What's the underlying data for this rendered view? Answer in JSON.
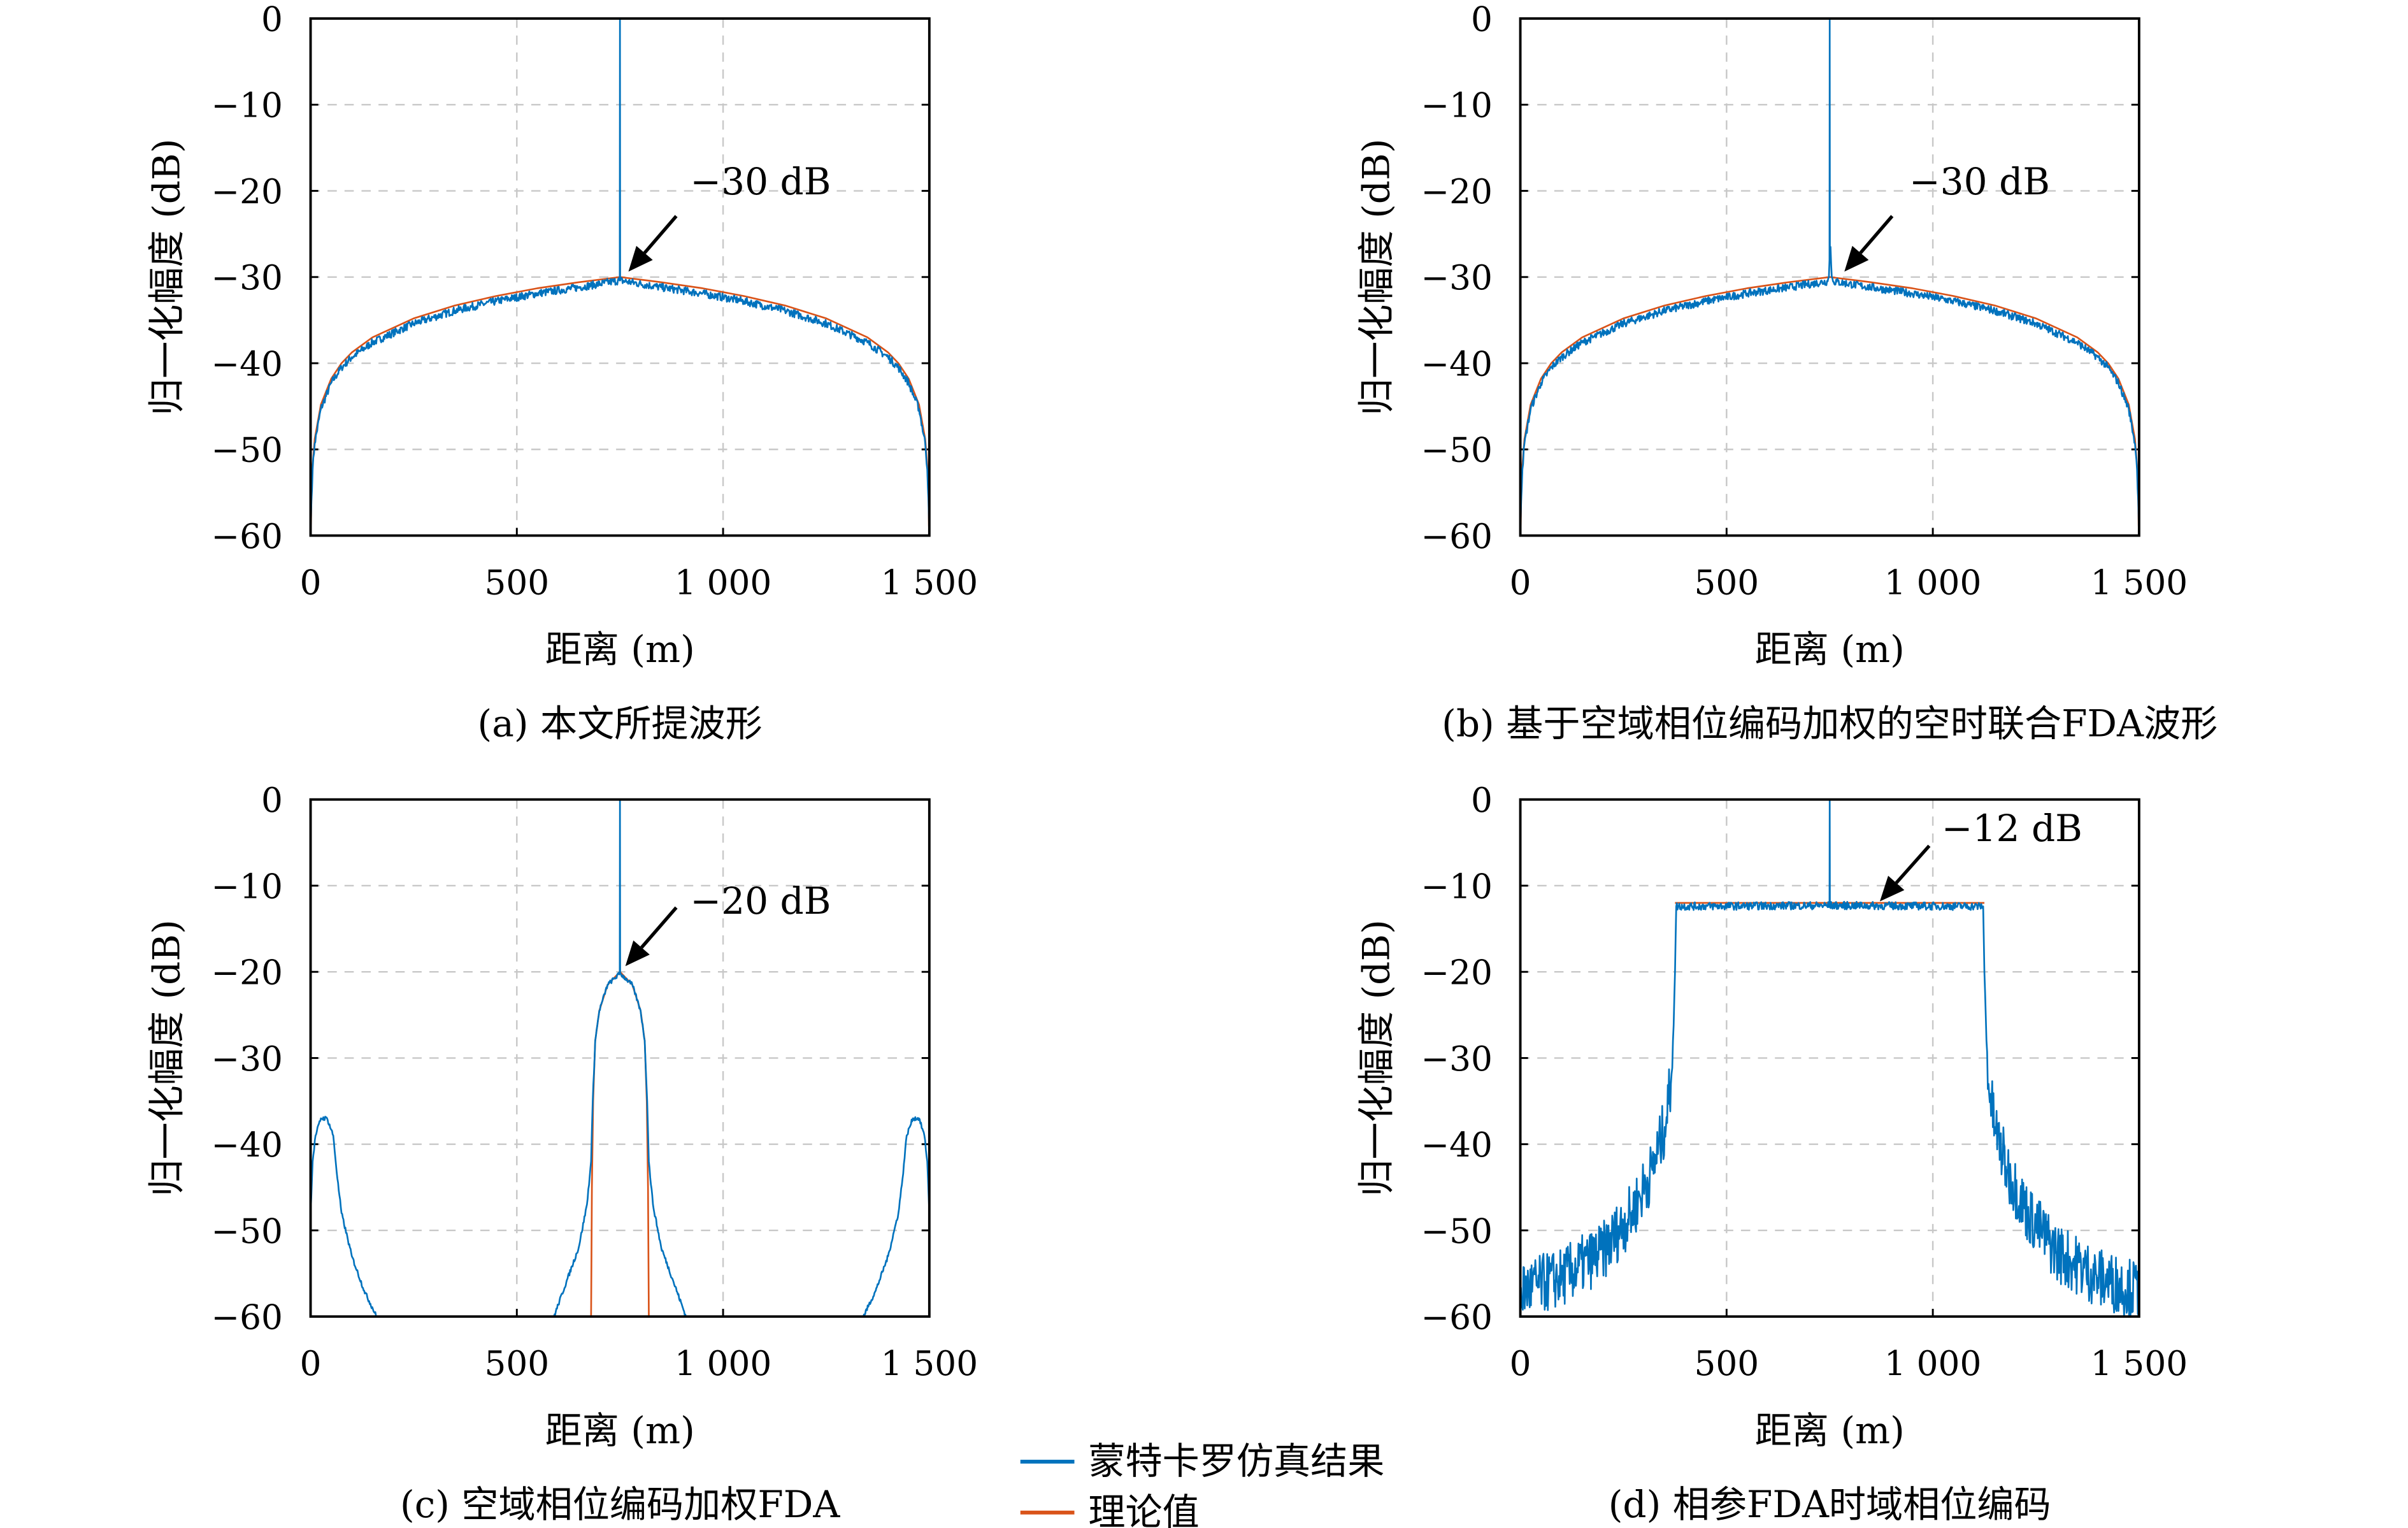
{
  "colors": {
    "simulation": "#0072BD",
    "theory": "#D95319",
    "grid": "#c8c8c8"
  },
  "legend": {
    "simulation": "蒙特卡罗仿真结果",
    "theory": "理论值",
    "placement": "bottom-center"
  },
  "chart_data": [
    {
      "type": "line",
      "caption": "(a) 本文所提波形",
      "xlabel": "距离 (m)",
      "ylabel": "归一化幅度 (dB)",
      "xlim": [
        0,
        1500
      ],
      "ylim": [
        -60,
        0
      ],
      "xticks": [
        0,
        500,
        1000,
        1500
      ],
      "xtick_labels": [
        "0",
        "500",
        "1 000",
        "1 500"
      ],
      "yticks": [
        0,
        -10,
        -20,
        -30,
        -40,
        -50,
        -60
      ],
      "ytick_labels": [
        "0",
        "−10",
        "−20",
        "−30",
        "−40",
        "−50",
        "−60"
      ],
      "grid": true,
      "annotation": {
        "text": "−30 dB",
        "x": 750,
        "y": -30
      },
      "series": [
        {
          "name": "蒙特卡罗仿真结果",
          "points": [
            [
              0,
              -60
            ],
            [
              2,
              -56
            ],
            [
              5,
              -52.3
            ],
            [
              10,
              -49.3
            ],
            [
              25,
              -45.3
            ],
            [
              50,
              -42.3
            ],
            [
              75,
              -40.5
            ],
            [
              100,
              -39.3
            ],
            [
              150,
              -37.6
            ],
            [
              250,
              -35.4
            ],
            [
              350,
              -33.9
            ],
            [
              450,
              -32.8
            ],
            [
              550,
              -31.9
            ],
            [
              650,
              -31.2
            ],
            [
              749.5,
              -30.4
            ],
            [
              750,
              0
            ],
            [
              750.5,
              -30.4
            ],
            [
              850,
              -31.2
            ],
            [
              950,
              -31.9
            ],
            [
              1050,
              -32.8
            ],
            [
              1150,
              -33.9
            ],
            [
              1250,
              -35.4
            ],
            [
              1350,
              -37.6
            ],
            [
              1400,
              -39.3
            ],
            [
              1425,
              -40.5
            ],
            [
              1450,
              -42.3
            ],
            [
              1475,
              -45.3
            ],
            [
              1490,
              -49.3
            ],
            [
              1495,
              -52.3
            ],
            [
              1498,
              -56
            ],
            [
              1500,
              -60
            ]
          ]
        },
        {
          "name": "理论值",
          "points": [
            [
              0,
              -60
            ],
            [
              1,
              -58.8
            ],
            [
              2,
              -55.7
            ],
            [
              5,
              -51.8
            ],
            [
              10,
              -48.8
            ],
            [
              25,
              -44.8
            ],
            [
              50,
              -41.8
            ],
            [
              75,
              -40
            ],
            [
              100,
              -38.75
            ],
            [
              150,
              -37
            ],
            [
              250,
              -34.8
            ],
            [
              350,
              -33.3
            ],
            [
              450,
              -32.2
            ],
            [
              550,
              -31.3
            ],
            [
              650,
              -30.6
            ],
            [
              750,
              -30
            ],
            [
              850,
              -30.6
            ],
            [
              950,
              -31.3
            ],
            [
              1050,
              -32.2
            ],
            [
              1150,
              -33.3
            ],
            [
              1250,
              -34.8
            ],
            [
              1350,
              -37
            ],
            [
              1400,
              -38.75
            ],
            [
              1425,
              -40
            ],
            [
              1450,
              -41.8
            ],
            [
              1475,
              -44.8
            ],
            [
              1490,
              -48.8
            ],
            [
              1495,
              -51.8
            ],
            [
              1498,
              -55.7
            ],
            [
              1499,
              -58.8
            ],
            [
              1500,
              -60
            ]
          ]
        }
      ]
    },
    {
      "type": "line",
      "caption": "(b) 基于空域相位编码加权的空时联合FDA波形",
      "xlabel": "距离 (m)",
      "ylabel": "归一化幅度 (dB)",
      "xlim": [
        0,
        1500
      ],
      "ylim": [
        -60,
        0
      ],
      "xticks": [
        0,
        500,
        1000,
        1500
      ],
      "xtick_labels": [
        "0",
        "500",
        "1 000",
        "1 500"
      ],
      "yticks": [
        0,
        -10,
        -20,
        -30,
        -40,
        -50,
        -60
      ],
      "ytick_labels": [
        "0",
        "−10",
        "−20",
        "−30",
        "−40",
        "−50",
        "−60"
      ],
      "grid": true,
      "annotation": {
        "text": "−30 dB",
        "x": 760,
        "y": -30
      },
      "series": [
        {
          "name": "蒙特卡罗仿真结果",
          "points": [
            [
              0,
              -60
            ],
            [
              2,
              -56
            ],
            [
              5,
              -52.3
            ],
            [
              10,
              -49.3
            ],
            [
              25,
              -45.3
            ],
            [
              50,
              -42.3
            ],
            [
              75,
              -40.5
            ],
            [
              100,
              -39.3
            ],
            [
              150,
              -37.6
            ],
            [
              250,
              -35.4
            ],
            [
              350,
              -33.9
            ],
            [
              450,
              -32.8
            ],
            [
              550,
              -31.9
            ],
            [
              650,
              -31.2
            ],
            [
              745,
              -30.5
            ],
            [
              748,
              -30
            ],
            [
              749.5,
              -28
            ],
            [
              750,
              0
            ],
            [
              750.5,
              -27
            ],
            [
              752,
              -26.5
            ],
            [
              755,
              -30
            ],
            [
              758,
              -30.5
            ],
            [
              850,
              -31.2
            ],
            [
              950,
              -31.9
            ],
            [
              1050,
              -32.8
            ],
            [
              1150,
              -33.9
            ],
            [
              1250,
              -35.4
            ],
            [
              1350,
              -37.6
            ],
            [
              1400,
              -39.3
            ],
            [
              1425,
              -40.5
            ],
            [
              1450,
              -42.3
            ],
            [
              1475,
              -45.3
            ],
            [
              1490,
              -49.3
            ],
            [
              1495,
              -52.3
            ],
            [
              1498,
              -56
            ],
            [
              1500,
              -60
            ]
          ]
        },
        {
          "name": "理论值",
          "points": [
            [
              0,
              -60
            ],
            [
              1,
              -58.8
            ],
            [
              2,
              -55.7
            ],
            [
              5,
              -51.8
            ],
            [
              10,
              -48.8
            ],
            [
              25,
              -44.8
            ],
            [
              50,
              -41.8
            ],
            [
              75,
              -40
            ],
            [
              100,
              -38.75
            ],
            [
              150,
              -37
            ],
            [
              250,
              -34.8
            ],
            [
              350,
              -33.3
            ],
            [
              450,
              -32.2
            ],
            [
              550,
              -31.3
            ],
            [
              650,
              -30.6
            ],
            [
              750,
              -30
            ],
            [
              850,
              -30.6
            ],
            [
              950,
              -31.3
            ],
            [
              1050,
              -32.2
            ],
            [
              1150,
              -33.3
            ],
            [
              1250,
              -34.8
            ],
            [
              1350,
              -37
            ],
            [
              1400,
              -38.75
            ],
            [
              1425,
              -40
            ],
            [
              1450,
              -41.8
            ],
            [
              1475,
              -44.8
            ],
            [
              1490,
              -48.8
            ],
            [
              1495,
              -51.8
            ],
            [
              1498,
              -55.7
            ],
            [
              1499,
              -58.8
            ],
            [
              1500,
              -60
            ]
          ]
        }
      ]
    },
    {
      "type": "line",
      "caption": "(c) 空域相位编码加权FDA",
      "xlabel": "距离 (m)",
      "ylabel": "归一化幅度 (dB)",
      "xlim": [
        0,
        1500
      ],
      "ylim": [
        -60,
        0
      ],
      "xticks": [
        0,
        500,
        1000,
        1500
      ],
      "xtick_labels": [
        "0",
        "500",
        "1 000",
        "1 500"
      ],
      "yticks": [
        0,
        -10,
        -20,
        -30,
        -40,
        -50,
        -60
      ],
      "ytick_labels": [
        "0",
        "−10",
        "−20",
        "−30",
        "−40",
        "−50",
        "−60"
      ],
      "grid": true,
      "annotation": {
        "text": "−20 dB",
        "x": 750,
        "y": -20
      },
      "series": [
        {
          "name": "蒙特卡罗仿真结果",
          "points": [
            [
              0,
              -48
            ],
            [
              5,
              -42
            ],
            [
              12,
              -39
            ],
            [
              25,
              -37
            ],
            [
              40,
              -37
            ],
            [
              55,
              -39
            ],
            [
              65,
              -44
            ],
            [
              75,
              -48
            ],
            [
              100,
              -53
            ],
            [
              130,
              -57
            ],
            [
              160,
              -60
            ]
          ],
          "segments": [
            [
              [
                590,
                -60
              ],
              [
                620,
                -56
              ],
              [
                650,
                -52
              ],
              [
                670,
                -47
              ],
              [
                680,
                -42
              ],
              [
                684,
                -35
              ],
              [
                690,
                -28
              ],
              [
                700,
                -24.5
              ],
              [
                720,
                -21.5
              ],
              [
                749.5,
                -20.2
              ],
              [
                750,
                0
              ],
              [
                750.5,
                -20.2
              ],
              [
                780,
                -21.5
              ],
              [
                800,
                -24.5
              ],
              [
                810,
                -28
              ],
              [
                816,
                -35
              ],
              [
                820,
                -42
              ],
              [
                830,
                -47
              ],
              [
                850,
                -52
              ],
              [
                880,
                -56
              ],
              [
                910,
                -60
              ]
            ],
            [
              [
                1340,
                -60
              ],
              [
                1370,
                -57
              ],
              [
                1400,
                -53
              ],
              [
                1425,
                -48
              ],
              [
                1435,
                -44
              ],
              [
                1445,
                -39
              ],
              [
                1460,
                -37
              ],
              [
                1475,
                -37
              ],
              [
                1488,
                -39
              ],
              [
                1495,
                -42
              ],
              [
                1500,
                -48
              ]
            ]
          ]
        },
        {
          "name": "理论值",
          "points": [
            [
              680,
              -60
            ],
            [
              682,
              -45
            ],
            [
              685,
              -35
            ],
            [
              690,
              -28
            ],
            [
              700,
              -24.5
            ],
            [
              720,
              -21.5
            ],
            [
              750,
              -20
            ],
            [
              780,
              -21.5
            ],
            [
              800,
              -24.5
            ],
            [
              810,
              -28
            ],
            [
              815,
              -35
            ],
            [
              818,
              -45
            ],
            [
              820,
              -60
            ]
          ]
        }
      ]
    },
    {
      "type": "line",
      "caption": "(d) 相参FDA时域相位编码",
      "xlabel": "距离 (m)",
      "ylabel": "归一化幅度 (dB)",
      "xlim": [
        0,
        1500
      ],
      "ylim": [
        -60,
        0
      ],
      "xticks": [
        0,
        500,
        1000,
        1500
      ],
      "xtick_labels": [
        "0",
        "500",
        "1 000",
        "1 500"
      ],
      "yticks": [
        0,
        -10,
        -20,
        -30,
        -40,
        -50,
        -60
      ],
      "ytick_labels": [
        "0",
        "−10",
        "−20",
        "−30",
        "−40",
        "−50",
        "−60"
      ],
      "grid": true,
      "annotation": {
        "text": "−12 dB",
        "x": 880,
        "y": -12
      },
      "series": [
        {
          "name": "蒙特卡罗仿真结果",
          "points": [
            [
              0,
              -57
            ],
            [
              100,
              -55.5
            ],
            [
              200,
              -52.5
            ],
            [
              270,
              -48
            ],
            [
              320,
              -43
            ],
            [
              350,
              -38
            ],
            [
              365,
              -33
            ],
            [
              370,
              -28
            ],
            [
              375,
              -20
            ],
            [
              378,
              -12.4
            ],
            [
              749.5,
              -12.3
            ],
            [
              750,
              0
            ],
            [
              750.5,
              -12.3
            ],
            [
              1122,
              -12.4
            ],
            [
              1125,
              -20
            ],
            [
              1130,
              -28
            ],
            [
              1135,
              -33
            ],
            [
              1150,
              -38
            ],
            [
              1180,
              -43
            ],
            [
              1230,
              -48
            ],
            [
              1300,
              -52.5
            ],
            [
              1400,
              -55.5
            ],
            [
              1500,
              -57
            ]
          ]
        },
        {
          "name": "理论值",
          "points": [
            [
              375,
              -12
            ],
            [
              1125,
              -12
            ]
          ]
        }
      ]
    }
  ]
}
